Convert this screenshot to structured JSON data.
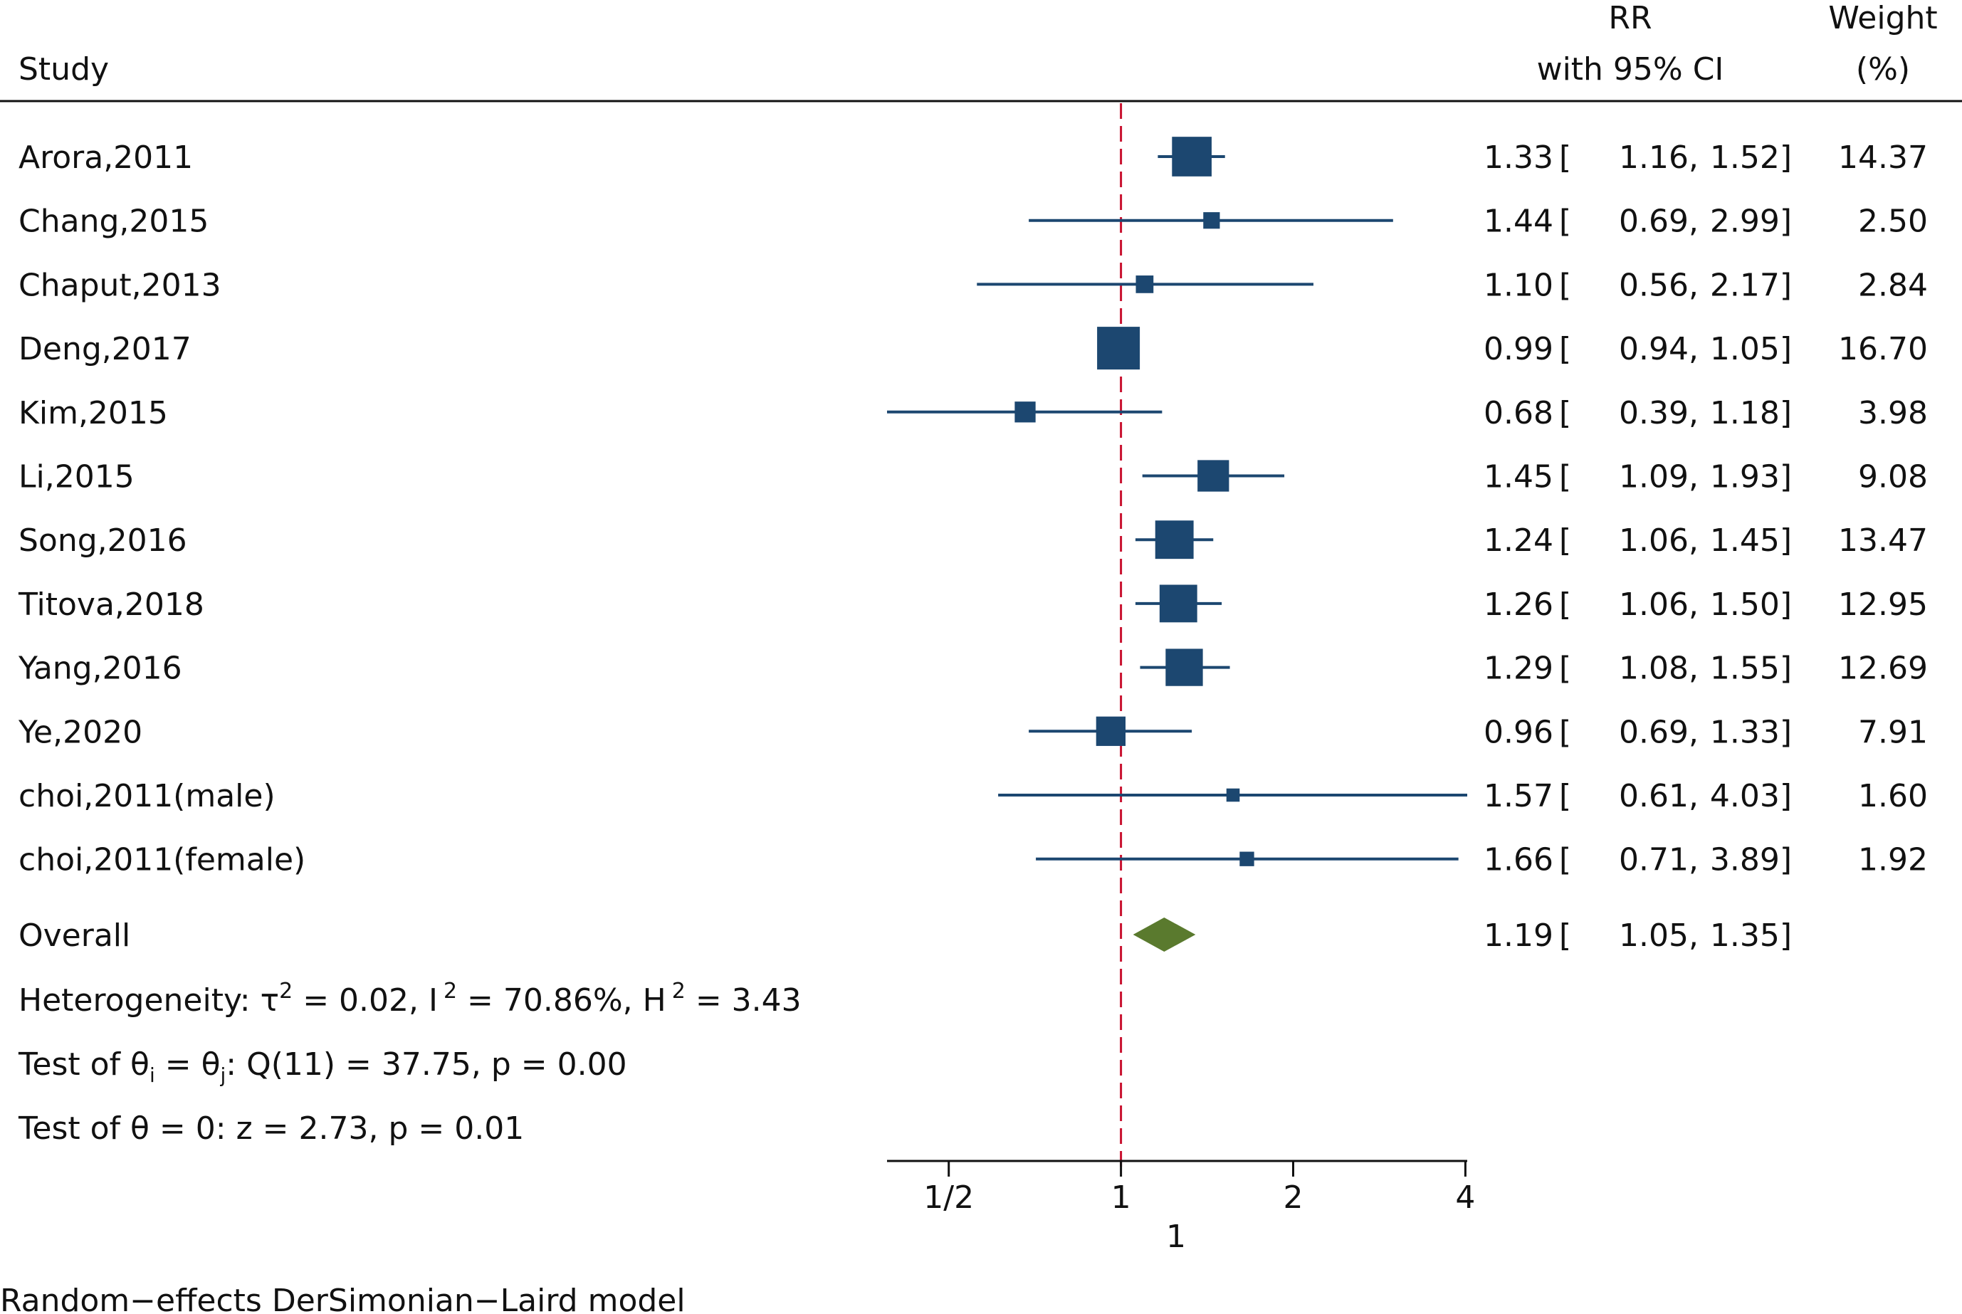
{
  "chart_data": {
    "type": "forest",
    "headers": {
      "study": "Study",
      "rr_line1": "RR",
      "rr_line2": "with 95% CI",
      "weight_line1": "Weight",
      "weight_line2": "(%)"
    },
    "studies": [
      {
        "label": "Arora,2011",
        "rr": 1.33,
        "lo": 1.16,
        "hi": 1.52,
        "weight": 14.37,
        "rr_text": "1.33",
        "lo_text": "1.16",
        "hi_text": "1.52",
        "weight_text": "14.37"
      },
      {
        "label": "Chang,2015",
        "rr": 1.44,
        "lo": 0.69,
        "hi": 2.99,
        "weight": 2.5,
        "rr_text": "1.44",
        "lo_text": "0.69",
        "hi_text": "2.99",
        "weight_text": "2.50"
      },
      {
        "label": "Chaput,2013",
        "rr": 1.1,
        "lo": 0.56,
        "hi": 2.17,
        "weight": 2.84,
        "rr_text": "1.10",
        "lo_text": "0.56",
        "hi_text": "2.17",
        "weight_text": "2.84"
      },
      {
        "label": "Deng,2017",
        "rr": 0.99,
        "lo": 0.94,
        "hi": 1.05,
        "weight": 16.7,
        "rr_text": "0.99",
        "lo_text": "0.94",
        "hi_text": "1.05",
        "weight_text": "16.70"
      },
      {
        "label": "Kim,2015",
        "rr": 0.68,
        "lo": 0.39,
        "hi": 1.18,
        "weight": 3.98,
        "rr_text": "0.68",
        "lo_text": "0.39",
        "hi_text": "1.18",
        "weight_text": "3.98"
      },
      {
        "label": "Li,2015",
        "rr": 1.45,
        "lo": 1.09,
        "hi": 1.93,
        "weight": 9.08,
        "rr_text": "1.45",
        "lo_text": "1.09",
        "hi_text": "1.93",
        "weight_text": "9.08"
      },
      {
        "label": "Song,2016",
        "rr": 1.24,
        "lo": 1.06,
        "hi": 1.45,
        "weight": 13.47,
        "rr_text": "1.24",
        "lo_text": "1.06",
        "hi_text": "1.45",
        "weight_text": "13.47"
      },
      {
        "label": "Titova,2018",
        "rr": 1.26,
        "lo": 1.06,
        "hi": 1.5,
        "weight": 12.95,
        "rr_text": "1.26",
        "lo_text": "1.06",
        "hi_text": "1.50",
        "weight_text": "12.95"
      },
      {
        "label": "Yang,2016",
        "rr": 1.29,
        "lo": 1.08,
        "hi": 1.55,
        "weight": 12.69,
        "rr_text": "1.29",
        "lo_text": "1.08",
        "hi_text": "1.55",
        "weight_text": "12.69"
      },
      {
        "label": "Ye,2020",
        "rr": 0.96,
        "lo": 0.69,
        "hi": 1.33,
        "weight": 7.91,
        "rr_text": "0.96",
        "lo_text": "0.69",
        "hi_text": "1.33",
        "weight_text": "7.91"
      },
      {
        "label": "choi,2011(male)",
        "rr": 1.57,
        "lo": 0.61,
        "hi": 4.03,
        "weight": 1.6,
        "rr_text": "1.57",
        "lo_text": "0.61",
        "hi_text": "4.03",
        "weight_text": "1.60"
      },
      {
        "label": "choi,2011(female)",
        "rr": 1.66,
        "lo": 0.71,
        "hi": 3.89,
        "weight": 1.92,
        "rr_text": "1.66",
        "lo_text": "0.71",
        "hi_text": "3.89",
        "weight_text": "1.92"
      }
    ],
    "overall": {
      "label": "Overall",
      "rr": 1.19,
      "lo": 1.05,
      "hi": 1.35,
      "rr_text": "1.19",
      "lo_text": "1.05",
      "hi_text": "1.35"
    },
    "heterogeneity": {
      "prefix": "Heterogeneity: ",
      "tau_symbol": "τ",
      "sup2": "2",
      "tau_value": " = 0.02, I",
      "i2_value": " = 70.86%, H",
      "h2_value": " = 3.43"
    },
    "test_homogeneity": {
      "prefix": "Test of ",
      "theta": "θ",
      "sub_i": "i",
      "eq": " = ",
      "sub_j": "j",
      "rest": ": Q(11) = 37.75, p = 0.00"
    },
    "test_effect": {
      "text": "Test of θ = 0: z = 2.73, p = 0.01"
    },
    "axis": {
      "scale": "log",
      "range": [
        0.39,
        4.03
      ],
      "ticks": [
        {
          "value": 0.5,
          "label": "1/2"
        },
        {
          "value": 1,
          "label": "1"
        },
        {
          "value": 2,
          "label": "2"
        },
        {
          "value": 4,
          "label": "4"
        }
      ],
      "xlabel": "1",
      "null_line": 1
    },
    "footnote": "Random−effects DerSimonian−Laird model",
    "colors": {
      "marker": "#1c4770",
      "diamond": "#5a7a2e",
      "null_line": "#c8102e",
      "text": "#111111"
    }
  }
}
